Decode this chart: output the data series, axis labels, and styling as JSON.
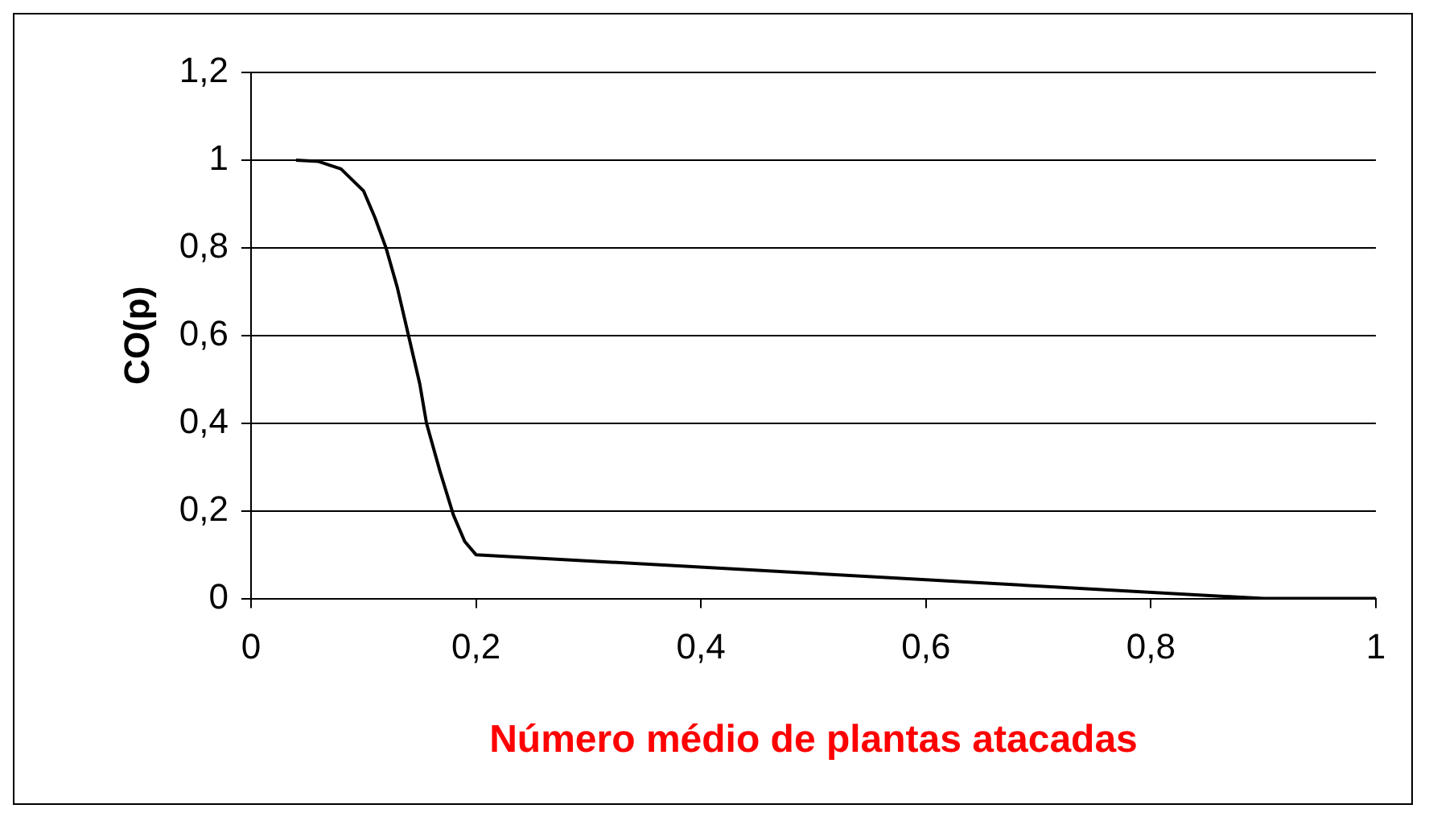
{
  "chart_data": {
    "type": "line",
    "xlabel": "Número médio de plantas atacadas",
    "ylabel": "CO(p)",
    "xlim": [
      0,
      1
    ],
    "xticks": [
      {
        "value": 0,
        "label": "0"
      },
      {
        "value": 0.2,
        "label": "0,2"
      },
      {
        "value": 0.4,
        "label": "0,4"
      },
      {
        "value": 0.6,
        "label": "0,6"
      },
      {
        "value": 0.8,
        "label": "0,8"
      },
      {
        "value": 1,
        "label": "1"
      }
    ],
    "ylim": [
      0,
      1.2
    ],
    "yticks": [
      {
        "value": 0,
        "label": "0"
      },
      {
        "value": 0.2,
        "label": "0,2"
      },
      {
        "value": 0.4,
        "label": "0,4"
      },
      {
        "value": 0.6,
        "label": "0,6"
      },
      {
        "value": 0.8,
        "label": "0,8"
      },
      {
        "value": 1,
        "label": "1"
      },
      {
        "value": 1.2,
        "label": "1,2"
      }
    ],
    "grid": "y",
    "legend": false,
    "marker": "none",
    "line_style": "solid",
    "series": [
      {
        "color": "#000000",
        "x": [
          0.04,
          0.06,
          0.08,
          0.1,
          0.11,
          0.12,
          0.13,
          0.14,
          0.15,
          0.156,
          0.168,
          0.18,
          0.19,
          0.2,
          0.9,
          1
        ],
        "values": [
          1.0,
          0.997,
          0.98,
          0.93,
          0.87,
          0.8,
          0.71,
          0.6,
          0.49,
          0.4,
          0.29,
          0.19,
          0.13,
          0.1,
          0,
          0
        ]
      }
    ]
  }
}
